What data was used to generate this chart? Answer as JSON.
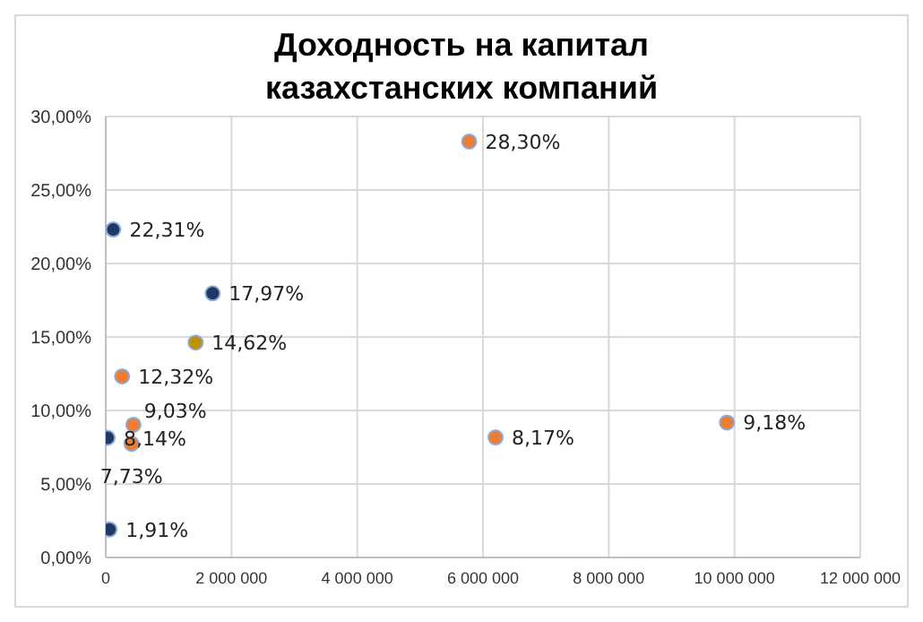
{
  "chart_data": {
    "type": "scatter",
    "title": "Доходность на капитал казахстанских компаний",
    "x": [
      120000,
      1700000,
      1430000,
      260000,
      440000,
      30000,
      410000,
      60000,
      5780000,
      6200000,
      9880000
    ],
    "values": [
      22.31,
      17.97,
      14.62,
      12.32,
      9.03,
      8.14,
      7.73,
      1.91,
      28.3,
      8.17,
      9.18
    ],
    "colors": [
      "#1f3864",
      "#1f3864",
      "#bf9000",
      "#ed7d31",
      "#ed7d31",
      "#1f3864",
      "#ed7d31",
      "#1f3864",
      "#ed7d31",
      "#ed7d31",
      "#ed7d31"
    ],
    "value_labels": [
      "22,31%",
      "17,97%",
      "14,62%",
      "12,32%",
      "9,03%",
      "8,14%",
      "7,73%",
      "1,91%",
      "28,30%",
      "8,17%",
      "9,18%"
    ],
    "xlim": [
      0,
      12000000
    ],
    "xticks": [
      {
        "value": 0,
        "label": "0"
      },
      {
        "value": 2000000,
        "label": "2 000 000"
      },
      {
        "value": 4000000,
        "label": "4 000 000"
      },
      {
        "value": 6000000,
        "label": "6 000 000"
      },
      {
        "value": 8000000,
        "label": "8 000 000"
      },
      {
        "value": 10000000,
        "label": "10 000 000"
      },
      {
        "value": 12000000,
        "label": "12 000 000"
      }
    ],
    "ylim": [
      0,
      30
    ],
    "yticks": [
      {
        "value": 0,
        "label": "0,00%"
      },
      {
        "value": 5,
        "label": "5,00%"
      },
      {
        "value": 10,
        "label": "10,00%"
      },
      {
        "value": 15,
        "label": "15,00%"
      },
      {
        "value": 20,
        "label": "20,00%"
      },
      {
        "value": 25,
        "label": "25,00%"
      },
      {
        "value": 30,
        "label": "30,00%"
      }
    ],
    "grid": true,
    "legend": false,
    "marker": "circle"
  }
}
